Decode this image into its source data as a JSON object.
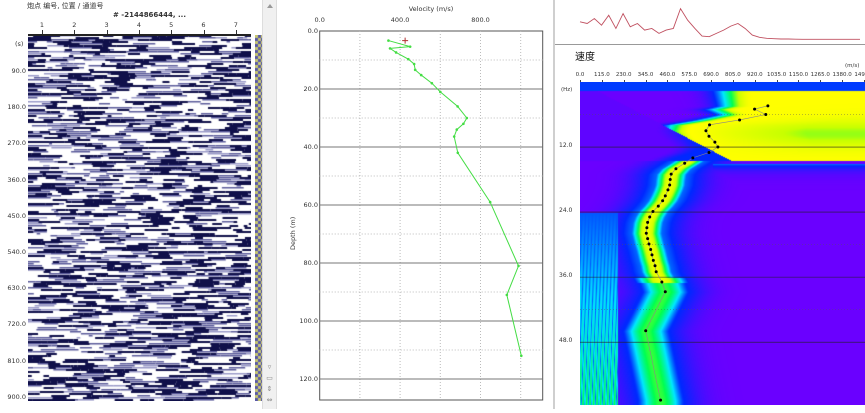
{
  "gather": {
    "header": "炮点 编号, 位置 / 通道号",
    "shot_label": "# -2144866444, ...",
    "y_unit": "(s)",
    "y_ticks": [
      "90.0",
      "180.0",
      "270.0",
      "360.0",
      "450.0",
      "540.0",
      "630.0",
      "720.0",
      "810.0",
      "900.0"
    ],
    "channels": [
      "1",
      "2",
      "3",
      "4",
      "5",
      "6",
      "7"
    ],
    "colors": {
      "trace": "#10104a",
      "fill": "#5a5a9a",
      "colorbar_a": "#5858a8",
      "colorbar_b": "#c8c870"
    }
  },
  "scrollbar": {
    "up_icon": "triangle-up",
    "buttons": [
      "▿",
      "▭",
      "⇕",
      "⇔"
    ]
  },
  "chart_data": [
    {
      "type": "line",
      "title": "",
      "xlabel": "Velocity (m/s)",
      "ylabel": "Depth (m)",
      "x_ticks": [
        "0.0",
        "400.0",
        "800.0"
      ],
      "y_ticks": [
        "0.0",
        "20.0",
        "40.0",
        "60.0",
        "80.0",
        "100.0",
        "120.0"
      ],
      "xlim": [
        0,
        1100
      ],
      "ylim": [
        0,
        127
      ],
      "grid": true,
      "color": "#44dd44",
      "marker": {
        "velocity": 425,
        "depth": 3.3,
        "color": "#b03030"
      },
      "velocity": [
        342,
        450,
        350,
        380,
        441,
        470,
        475,
        505,
        558,
        600,
        686,
        732,
        715,
        682,
        669,
        687,
        848,
        989,
        931,
        1003
      ],
      "depth": [
        3.3,
        5.4,
        6.0,
        7.4,
        9.7,
        11.4,
        13.4,
        15.2,
        18,
        21,
        26,
        30,
        32,
        34,
        36.4,
        42,
        59,
        81,
        91,
        112
      ]
    },
    {
      "type": "heatmap",
      "title": "速度",
      "x_unit": "(m/s)",
      "y_unit": "(Hz)",
      "x_ticks": [
        "0.0",
        "115.0",
        "230.0",
        "345.0",
        "460.0",
        "575.0",
        "690.0",
        "805.0",
        "920.0",
        "1035.0",
        "1150.0",
        "1265.0",
        "1380.0",
        "1495.0"
      ],
      "y_ticks": [
        "12.0",
        "24.0",
        "36.0",
        "48.0"
      ],
      "xlim": [
        0,
        1495
      ],
      "ylim": [
        0,
        59
      ],
      "colormap": [
        "#6a00ff",
        "#0028ff",
        "#00e8ff",
        "#00ff50",
        "#c8ff00",
        "#ffff00"
      ],
      "picks": {
        "velocity": [
          989,
          919,
          978,
          840,
          682,
          663,
          679,
          710,
          726,
          679,
          594,
          551,
          505,
          480,
          475,
          472,
          463,
          449,
          435,
          412,
          384,
          367,
          356,
          352,
          349,
          356,
          363,
          372,
          379,
          386,
          395,
          401,
          431,
          449,
          346,
          424
        ],
        "frequency": [
          4.4,
          5.0,
          6.0,
          7.0,
          7.9,
          9.0,
          10.0,
          11.1,
          12.0,
          13.0,
          14.0,
          15.0,
          16.0,
          17.0,
          18.0,
          19.0,
          19.9,
          21.0,
          21.9,
          22.9,
          23.9,
          24.9,
          25.9,
          26.9,
          27.9,
          28.9,
          29.9,
          30.9,
          31.9,
          32.9,
          33.9,
          35.0,
          36.9,
          38.7,
          45.9,
          58.7
        ]
      }
    },
    {
      "type": "line",
      "title": "",
      "color": "#c05060",
      "values": [
        0.55,
        0.5,
        0.65,
        0.45,
        0.75,
        0.35,
        0.8,
        0.4,
        0.5,
        0.3,
        0.35,
        0.2,
        0.3,
        0.35,
        0.95,
        0.6,
        0.35,
        0.12,
        0.1,
        0.2,
        0.3,
        0.42,
        0.5,
        0.35,
        0.15,
        0.08,
        0.05,
        0.04,
        0.03,
        0.03,
        0.025,
        0.02,
        0.02,
        0.02,
        0.02,
        0.02,
        0.02,
        0.02,
        0.02,
        0.02
      ]
    }
  ]
}
